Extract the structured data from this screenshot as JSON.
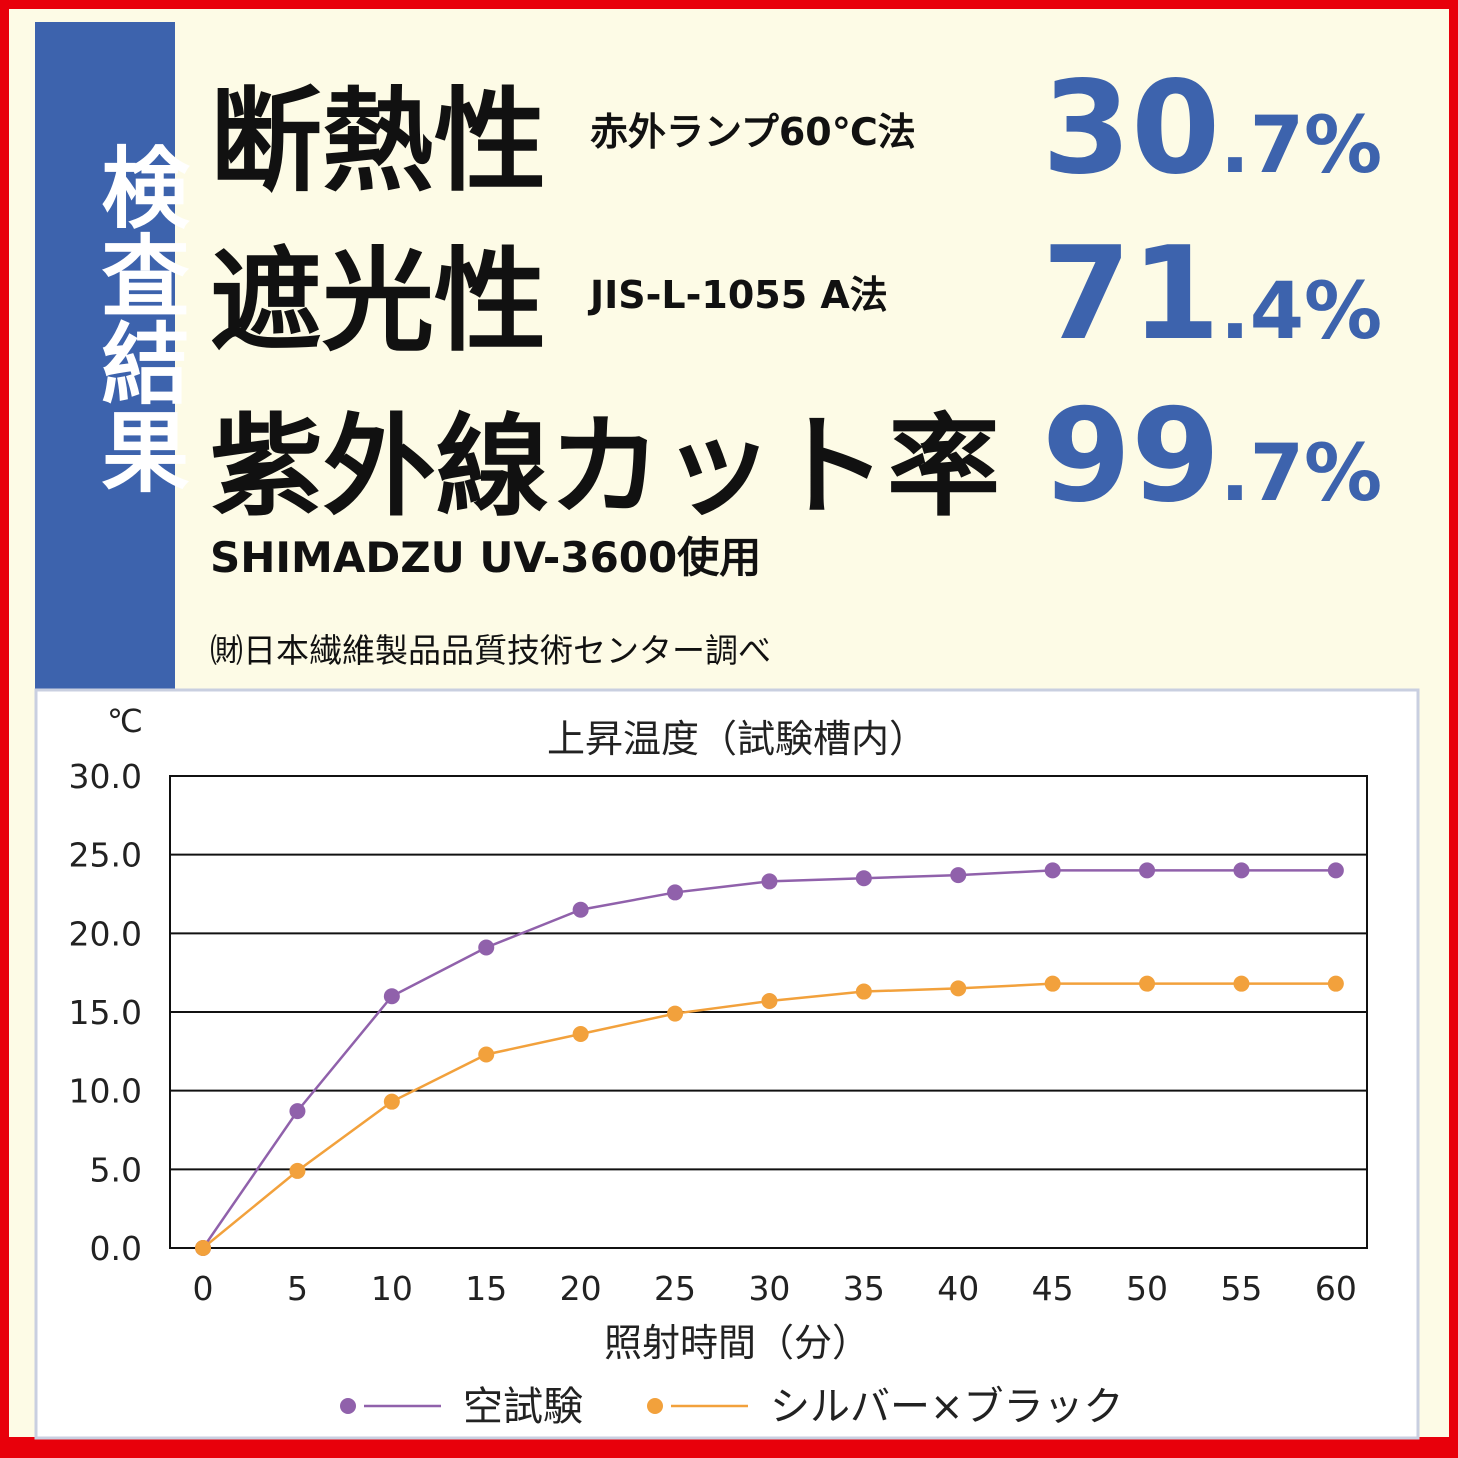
{
  "header": {
    "side_label": "検査結果",
    "results": [
      {
        "name": "断熱性",
        "method": "赤外ランプ60℃法",
        "value_main": "30",
        "value_sub": ".7%"
      },
      {
        "name": "遮光性",
        "method": "JIS-L-1055 A法",
        "value_main": "71",
        "value_sub": ".4%"
      },
      {
        "name": "紫外線カット率",
        "method": "SHIMADZU UV-3600使用",
        "value_main": "99",
        "value_sub": ".7%"
      }
    ],
    "source": "㈶日本繊維製品品質技術センター調べ"
  },
  "chart_data": {
    "type": "line",
    "title": "上昇温度（試験槽内）",
    "y_unit": "℃",
    "x_label": "照射時間（分）",
    "x": [
      0,
      5,
      10,
      15,
      20,
      25,
      30,
      35,
      40,
      45,
      50,
      55,
      60
    ],
    "series": [
      {
        "name": "空試験",
        "color": "#9061ab",
        "values": [
          0,
          8.7,
          16.0,
          19.1,
          21.5,
          22.6,
          23.3,
          23.5,
          23.7,
          24.0,
          24.0,
          24.0,
          24.0
        ]
      },
      {
        "name": "シルバー×ブラック",
        "color": "#f2a13c",
        "values": [
          0,
          4.9,
          9.3,
          12.3,
          13.6,
          14.9,
          15.7,
          16.3,
          16.5,
          16.8,
          16.8,
          16.8,
          16.8
        ]
      }
    ],
    "xlim": [
      -1.75,
      61.65
    ],
    "xticks": [
      0,
      5,
      10,
      15,
      20,
      25,
      30,
      35,
      40,
      45,
      50,
      55,
      60
    ],
    "ylim": [
      0,
      30
    ],
    "yticks": [
      {
        "value": 0,
        "label": "0.0"
      },
      {
        "value": 5,
        "label": "5.0"
      },
      {
        "value": 10,
        "label": "10.0"
      },
      {
        "value": 15,
        "label": "15.0"
      },
      {
        "value": 20,
        "label": "20.0"
      },
      {
        "value": 25,
        "label": "25.0"
      },
      {
        "value": 30,
        "label": "30.0"
      }
    ],
    "grid": true,
    "legend": "bottom"
  }
}
